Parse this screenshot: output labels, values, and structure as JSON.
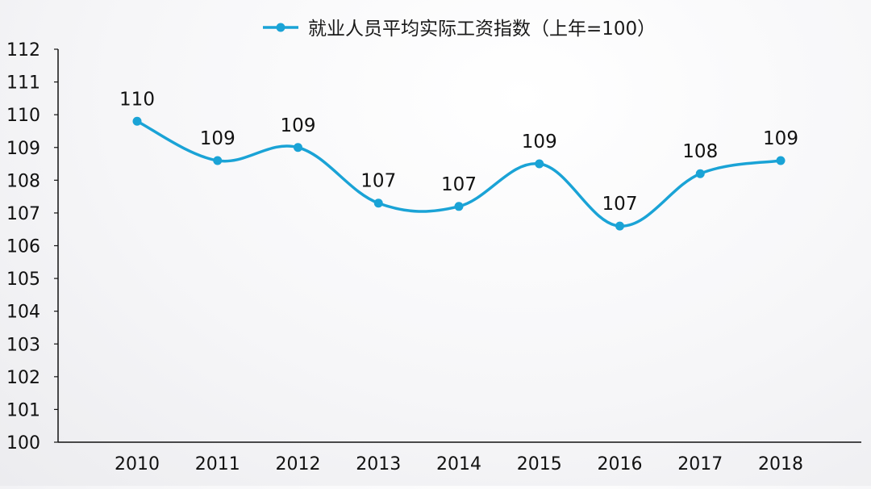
{
  "chart_data": {
    "type": "line",
    "categories": [
      "2010",
      "2011",
      "2012",
      "2013",
      "2014",
      "2015",
      "2016",
      "2017",
      "2018"
    ],
    "series": [
      {
        "name": "就业人员平均实际工资指数（上年=100）",
        "values": [
          109.8,
          108.6,
          109.0,
          107.3,
          107.2,
          108.5,
          106.6,
          108.2,
          108.6
        ],
        "labels": [
          "110",
          "109",
          "109",
          "107",
          "107",
          "109",
          "107",
          "108",
          "109"
        ],
        "color": "#1aa3d6"
      }
    ],
    "ylim": [
      100,
      112
    ],
    "yticks": [
      "100",
      "101",
      "102",
      "103",
      "104",
      "105",
      "106",
      "107",
      "108",
      "109",
      "110",
      "111",
      "112"
    ],
    "legend_position": "top-center",
    "grid": false,
    "axis_color": "#111111"
  }
}
